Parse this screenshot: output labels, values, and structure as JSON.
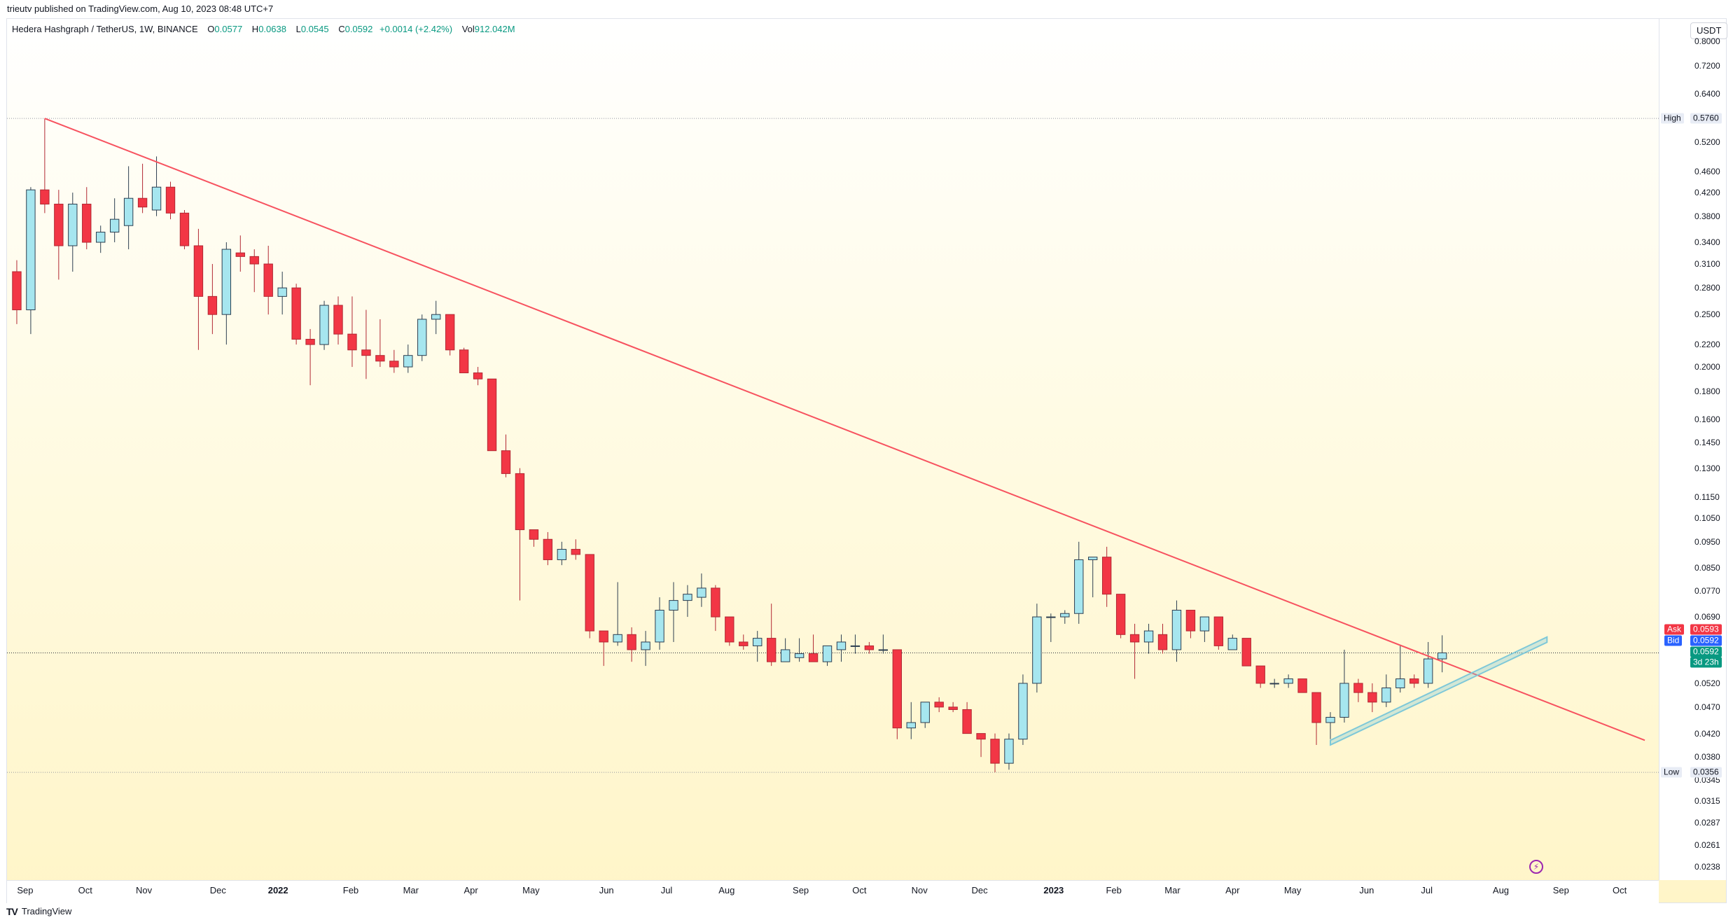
{
  "header": {
    "published_text": "trieutv published on TradingView.com, Aug 10, 2023 08:48 UTC+7"
  },
  "legend": {
    "symbol": "Hedera Hashgraph / TetherUS, 1W, BINANCE",
    "o_label": "O",
    "o_value": "0.0577",
    "h_label": "H",
    "h_value": "0.0638",
    "l_label": "L",
    "l_value": "0.0545",
    "c_label": "C",
    "c_value": "0.0592",
    "change": "+0.0014 (+2.42%)",
    "vol_label": "Vol",
    "vol_value": "912.042M"
  },
  "axis": {
    "currency": "USDT",
    "price_ticks": [
      "0.8000",
      "0.7200",
      "0.6400",
      "0.5200",
      "0.4600",
      "0.4200",
      "0.3800",
      "0.3400",
      "0.3100",
      "0.2800",
      "0.2500",
      "0.2200",
      "0.2000",
      "0.1800",
      "0.1600",
      "0.1450",
      "0.1300",
      "0.1150",
      "0.1050",
      "0.0950",
      "0.0850",
      "0.0770",
      "0.0690",
      "0.0520",
      "0.0470",
      "0.0420",
      "0.0380",
      "0.0345",
      "0.0315",
      "0.0287",
      "0.0261",
      "0.0238"
    ],
    "high_label": "High",
    "high_value": "0.5760",
    "low_label": "Low",
    "low_value": "0.0356",
    "ask_label": "Ask",
    "ask_value": "0.0593",
    "bid_label": "Bid",
    "bid_value": "0.0592",
    "last_value": "0.0592",
    "countdown": "3d 23h",
    "time_labels": [
      {
        "text": "Sep",
        "major": false
      },
      {
        "text": "Oct",
        "major": false
      },
      {
        "text": "Nov",
        "major": false
      },
      {
        "text": "Dec",
        "major": false
      },
      {
        "text": "2022",
        "major": true
      },
      {
        "text": "Feb",
        "major": false
      },
      {
        "text": "Mar",
        "major": false
      },
      {
        "text": "Apr",
        "major": false
      },
      {
        "text": "May",
        "major": false
      },
      {
        "text": "Jun",
        "major": false
      },
      {
        "text": "Jul",
        "major": false
      },
      {
        "text": "Aug",
        "major": false
      },
      {
        "text": "Sep",
        "major": false
      },
      {
        "text": "Oct",
        "major": false
      },
      {
        "text": "Nov",
        "major": false
      },
      {
        "text": "Dec",
        "major": false
      },
      {
        "text": "2023",
        "major": true
      },
      {
        "text": "Feb",
        "major": false
      },
      {
        "text": "Mar",
        "major": false
      },
      {
        "text": "Apr",
        "major": false
      },
      {
        "text": "May",
        "major": false
      },
      {
        "text": "Jun",
        "major": false
      },
      {
        "text": "Jul",
        "major": false
      },
      {
        "text": "Aug",
        "major": false
      },
      {
        "text": "Sep",
        "major": false
      },
      {
        "text": "Oct",
        "major": false
      }
    ]
  },
  "footer": {
    "brand": "TradingView",
    "logo": "TV"
  },
  "colors": {
    "up": "#a6e6ef",
    "up_border": "#2c3e50",
    "down": "#f23645",
    "trendline": "#f7525f",
    "channel": "#7ec8d8"
  },
  "chart_data": {
    "type": "candlestick",
    "title": "Hedera Hashgraph / TetherUS, 1W, BINANCE",
    "y_scale": "log",
    "ylim": [
      0.0225,
      0.88
    ],
    "x": "weeks from 2021-09-06",
    "xlim": [
      -0.7,
      117.5
    ],
    "candles": [
      [
        0.3,
        0.315,
        0.24,
        0.255
      ],
      [
        0.255,
        0.43,
        0.23,
        0.425
      ],
      [
        0.425,
        0.576,
        0.385,
        0.4
      ],
      [
        0.4,
        0.425,
        0.29,
        0.335
      ],
      [
        0.335,
        0.42,
        0.3,
        0.4
      ],
      [
        0.4,
        0.43,
        0.33,
        0.34
      ],
      [
        0.34,
        0.365,
        0.325,
        0.355
      ],
      [
        0.355,
        0.41,
        0.34,
        0.375
      ],
      [
        0.365,
        0.47,
        0.33,
        0.41
      ],
      [
        0.41,
        0.475,
        0.385,
        0.395
      ],
      [
        0.39,
        0.49,
        0.38,
        0.43
      ],
      [
        0.43,
        0.44,
        0.375,
        0.385
      ],
      [
        0.385,
        0.39,
        0.33,
        0.335
      ],
      [
        0.335,
        0.36,
        0.215,
        0.27
      ],
      [
        0.27,
        0.31,
        0.23,
        0.25
      ],
      [
        0.25,
        0.34,
        0.22,
        0.33
      ],
      [
        0.325,
        0.35,
        0.3,
        0.32
      ],
      [
        0.32,
        0.33,
        0.275,
        0.31
      ],
      [
        0.31,
        0.335,
        0.25,
        0.27
      ],
      [
        0.27,
        0.3,
        0.25,
        0.28
      ],
      [
        0.28,
        0.285,
        0.22,
        0.225
      ],
      [
        0.225,
        0.235,
        0.185,
        0.22
      ],
      [
        0.22,
        0.265,
        0.215,
        0.26
      ],
      [
        0.26,
        0.27,
        0.22,
        0.23
      ],
      [
        0.23,
        0.27,
        0.2,
        0.215
      ],
      [
        0.215,
        0.255,
        0.19,
        0.21
      ],
      [
        0.21,
        0.245,
        0.2,
        0.205
      ],
      [
        0.205,
        0.215,
        0.195,
        0.2
      ],
      [
        0.2,
        0.22,
        0.195,
        0.21
      ],
      [
        0.21,
        0.25,
        0.205,
        0.245
      ],
      [
        0.245,
        0.265,
        0.23,
        0.25
      ],
      [
        0.25,
        0.25,
        0.21,
        0.215
      ],
      [
        0.215,
        0.217,
        0.195,
        0.195
      ],
      [
        0.195,
        0.2,
        0.185,
        0.19
      ],
      [
        0.19,
        0.19,
        0.14,
        0.14
      ],
      [
        0.14,
        0.15,
        0.125,
        0.127
      ],
      [
        0.127,
        0.13,
        0.074,
        0.1
      ],
      [
        0.1,
        0.1,
        0.093,
        0.096
      ],
      [
        0.096,
        0.099,
        0.086,
        0.088
      ],
      [
        0.088,
        0.095,
        0.086,
        0.092
      ],
      [
        0.092,
        0.096,
        0.088,
        0.09
      ],
      [
        0.09,
        0.09,
        0.063,
        0.065
      ],
      [
        0.065,
        0.065,
        0.056,
        0.062
      ],
      [
        0.062,
        0.08,
        0.061,
        0.064
      ],
      [
        0.064,
        0.066,
        0.057,
        0.06
      ],
      [
        0.06,
        0.065,
        0.056,
        0.062
      ],
      [
        0.062,
        0.075,
        0.06,
        0.071
      ],
      [
        0.071,
        0.08,
        0.062,
        0.074
      ],
      [
        0.074,
        0.079,
        0.069,
        0.076
      ],
      [
        0.075,
        0.083,
        0.072,
        0.078
      ],
      [
        0.078,
        0.079,
        0.065,
        0.069
      ],
      [
        0.069,
        0.069,
        0.061,
        0.062
      ],
      [
        0.062,
        0.064,
        0.06,
        0.061
      ],
      [
        0.061,
        0.065,
        0.057,
        0.063
      ],
      [
        0.063,
        0.073,
        0.056,
        0.057
      ],
      [
        0.057,
        0.063,
        0.057,
        0.06
      ],
      [
        0.058,
        0.063,
        0.057,
        0.059
      ],
      [
        0.059,
        0.064,
        0.057,
        0.057
      ],
      [
        0.057,
        0.061,
        0.056,
        0.061
      ],
      [
        0.06,
        0.064,
        0.057,
        0.062
      ],
      [
        0.061,
        0.064,
        0.059,
        0.061
      ],
      [
        0.061,
        0.062,
        0.059,
        0.06
      ],
      [
        0.06,
        0.064,
        0.059,
        0.06
      ],
      [
        0.06,
        0.06,
        0.041,
        0.043
      ],
      [
        0.043,
        0.048,
        0.041,
        0.044
      ],
      [
        0.044,
        0.048,
        0.043,
        0.048
      ],
      [
        0.048,
        0.049,
        0.046,
        0.047
      ],
      [
        0.047,
        0.048,
        0.046,
        0.0465
      ],
      [
        0.0465,
        0.048,
        0.042,
        0.042
      ],
      [
        0.042,
        0.042,
        0.038,
        0.041
      ],
      [
        0.041,
        0.042,
        0.0356,
        0.037
      ],
      [
        0.037,
        0.042,
        0.036,
        0.041
      ],
      [
        0.041,
        0.054,
        0.04,
        0.052
      ],
      [
        0.052,
        0.073,
        0.05,
        0.069
      ],
      [
        0.069,
        0.07,
        0.062,
        0.069
      ],
      [
        0.069,
        0.071,
        0.067,
        0.07
      ],
      [
        0.07,
        0.095,
        0.067,
        0.088
      ],
      [
        0.088,
        0.089,
        0.075,
        0.089
      ],
      [
        0.089,
        0.093,
        0.072,
        0.076
      ],
      [
        0.076,
        0.076,
        0.063,
        0.064
      ],
      [
        0.064,
        0.067,
        0.053,
        0.062
      ],
      [
        0.062,
        0.067,
        0.059,
        0.065
      ],
      [
        0.064,
        0.067,
        0.059,
        0.06
      ],
      [
        0.06,
        0.074,
        0.057,
        0.071
      ],
      [
        0.071,
        0.071,
        0.063,
        0.065
      ],
      [
        0.065,
        0.069,
        0.062,
        0.069
      ],
      [
        0.069,
        0.069,
        0.06,
        0.061
      ],
      [
        0.06,
        0.064,
        0.06,
        0.063
      ],
      [
        0.063,
        0.063,
        0.056,
        0.056
      ],
      [
        0.056,
        0.056,
        0.051,
        0.052
      ],
      [
        0.052,
        0.053,
        0.051,
        0.052
      ],
      [
        0.052,
        0.054,
        0.051,
        0.053
      ],
      [
        0.053,
        0.053,
        0.05,
        0.05
      ],
      [
        0.05,
        0.05,
        0.04,
        0.044
      ],
      [
        0.044,
        0.046,
        0.041,
        0.045
      ],
      [
        0.045,
        0.06,
        0.044,
        0.052
      ],
      [
        0.052,
        0.053,
        0.048,
        0.05
      ],
      [
        0.05,
        0.052,
        0.046,
        0.048
      ],
      [
        0.048,
        0.054,
        0.047,
        0.051
      ],
      [
        0.051,
        0.061,
        0.05,
        0.053
      ],
      [
        0.053,
        0.054,
        0.051,
        0.052
      ],
      [
        0.052,
        0.062,
        0.051,
        0.0577
      ],
      [
        0.0577,
        0.0638,
        0.0545,
        0.0592
      ]
    ],
    "trendline": {
      "from": [
        2,
        0.576
      ],
      "to": [
        116.5,
        0.0408
      ]
    },
    "channel": {
      "lower": [
        [
          94,
          0.04
        ],
        [
          107,
          0.0577
        ]
      ],
      "upper": [
        [
          94,
          0.0408
        ],
        [
          107,
          0.059
        ]
      ]
    },
    "high": 0.576,
    "low": 0.0356,
    "last_price": 0.0592
  }
}
